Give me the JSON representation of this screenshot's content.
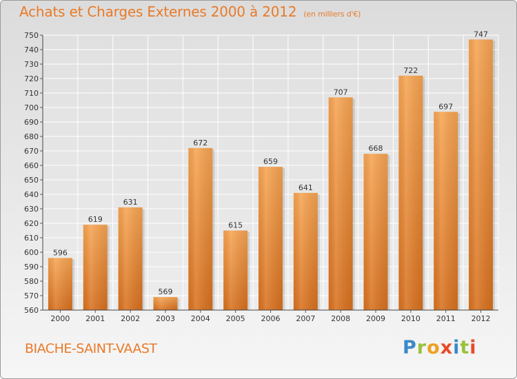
{
  "header": {
    "title": "Achats et Charges Externes 2000 à 2012",
    "unit": "(en milliers d'€)"
  },
  "footer": {
    "city": "BIACHE-SAINT-VAAST",
    "logo_text": "Proxiti"
  },
  "colors": {
    "accent": "#e87a28",
    "bar_light": "#f7a553",
    "bar_dark": "#d8711f"
  },
  "chart_data": {
    "type": "bar",
    "title": "Achats et Charges Externes 2000 à 2012",
    "subtitle": "(en milliers d'€)",
    "categories": [
      "2000",
      "2001",
      "2002",
      "2003",
      "2004",
      "2005",
      "2006",
      "2007",
      "2008",
      "2009",
      "2010",
      "2011",
      "2012"
    ],
    "values": [
      596,
      619,
      631,
      569,
      672,
      615,
      659,
      641,
      707,
      668,
      722,
      697,
      747
    ],
    "ylim": [
      560,
      750
    ],
    "yticks": [
      560,
      570,
      580,
      590,
      600,
      610,
      620,
      630,
      640,
      650,
      660,
      670,
      680,
      690,
      700,
      710,
      720,
      730,
      740,
      750
    ],
    "grid": true,
    "data_labels": true
  }
}
